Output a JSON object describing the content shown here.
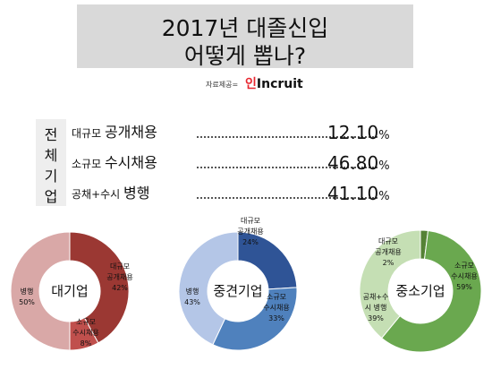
{
  "header": {
    "title_line1": "2017년 대졸신입",
    "title_line2": "어떻게 뽑나?"
  },
  "source": {
    "label": "자료제공=",
    "logo_mark": "인",
    "logo_text": "Incruit"
  },
  "overall": {
    "side_label": [
      "전",
      "체",
      "기",
      "업"
    ],
    "rows": [
      {
        "prefix": "대규모 ",
        "main": "공개채용",
        "value": "12.10",
        "unit": "%"
      },
      {
        "prefix": "소규모 ",
        "main": "수시채용",
        "value": "46.80",
        "unit": "%"
      },
      {
        "prefix": "공채+수시 ",
        "main": "병행",
        "value": "41.10",
        "unit": "%"
      }
    ]
  },
  "chart_data": [
    {
      "type": "pie",
      "title": "대기업",
      "categories": [
        "대규모 공개채용",
        "소규모 수시채용",
        "병행"
      ],
      "values": [
        42,
        8,
        50
      ],
      "colors": [
        "#9b3833",
        "#c0504d",
        "#d9a8a7"
      ],
      "labels": [
        [
          "대규모",
          "공개채용",
          "42%"
        ],
        [
          "소규모",
          "수시채용",
          "8%"
        ],
        [
          "병행",
          "50%"
        ]
      ]
    },
    {
      "type": "pie",
      "title": "중견기업",
      "categories": [
        "대규모 공개채용",
        "소규모 수시채용",
        "병행"
      ],
      "values": [
        24,
        33,
        43
      ],
      "colors": [
        "#2f5496",
        "#4f81bd",
        "#b4c6e7"
      ],
      "labels": [
        [
          "대규모",
          "공개채용",
          "24%"
        ],
        [
          "소규모",
          "수시채용",
          "33%"
        ],
        [
          "병행",
          "43%"
        ]
      ]
    },
    {
      "type": "pie",
      "title": "중소기업",
      "categories": [
        "대규모 공개채용",
        "소규모 수시채용",
        "병행"
      ],
      "values": [
        2,
        59,
        39
      ],
      "colors": [
        "#548235",
        "#6aa84f",
        "#c5dfb4"
      ],
      "labels": [
        [
          "대규모",
          "공개채용",
          "2%"
        ],
        [
          "소규모",
          "수시채용",
          "59%"
        ],
        [
          "공채+수",
          "시 병행",
          "39%"
        ]
      ]
    }
  ]
}
